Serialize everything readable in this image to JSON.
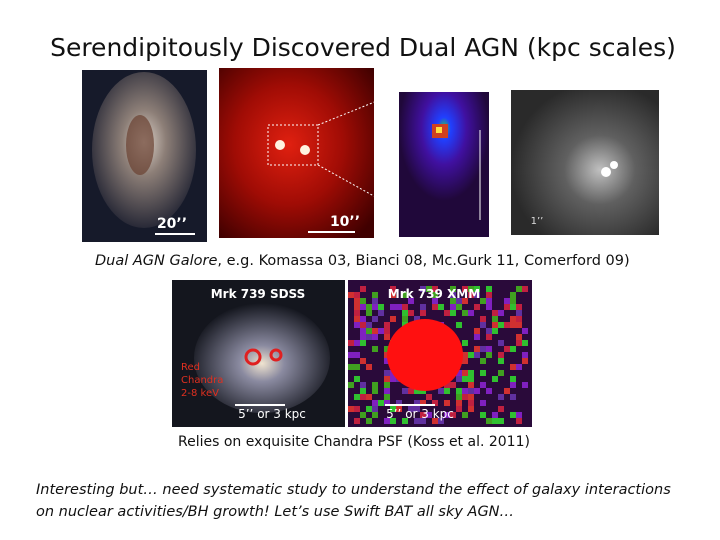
{
  "title": "Serendipitously Discovered Dual AGN (kpc scales)",
  "row1_labels": {
    "galaxy_scale": "20’’",
    "red_scale": "10’’",
    "gray_scale": "1’’"
  },
  "caption1": {
    "emphasis": "Dual AGN Galore",
    "rest": ", e.g. Komassa 03, Bianci 08, Mc.Gurk 11, Comerford 09)"
  },
  "sdss_image": {
    "title": "Mrk 739 SDSS",
    "legend": [
      "Red",
      "Chandra",
      "2-8 keV"
    ],
    "scale": "5’’ or 3 kpc"
  },
  "xmm_image": {
    "title": "Mrk 739 XMM",
    "scale": "5’’ or 3 kpc"
  },
  "caption2": "Relies on exquisite Chandra PSF (Koss et al. 2011)",
  "conclusion": [
    "Interesting but… need systematic study to understand the effect of galaxy interactions",
    "on nuclear activities/BH growth!  Let’s use Swift BAT all sky AGN…"
  ]
}
